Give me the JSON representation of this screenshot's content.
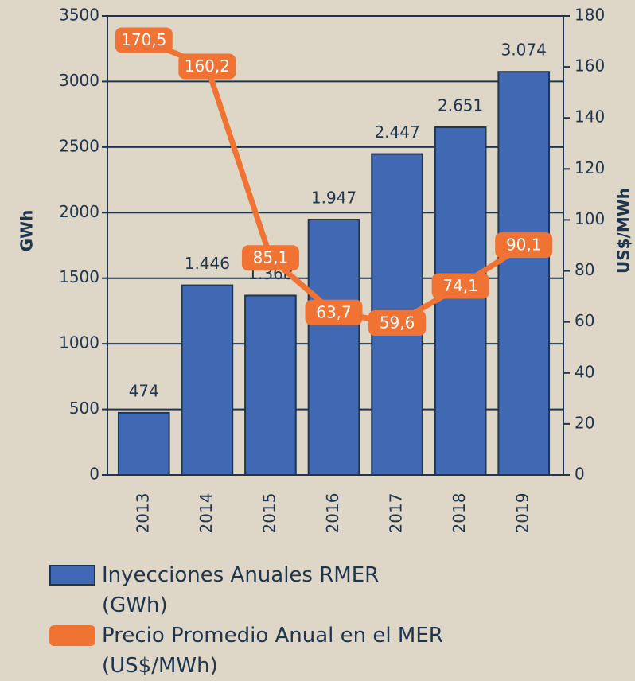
{
  "chart_data": {
    "type": "bar",
    "categories": [
      "2013",
      "2014",
      "2015",
      "2016",
      "2017",
      "2018",
      "2019"
    ],
    "ylabel": "GWh",
    "y2label": "US$/MWh",
    "ylim": [
      0,
      3500
    ],
    "yticks": [
      0,
      500,
      1000,
      1500,
      2000,
      2500,
      3000,
      3500
    ],
    "y2lim": [
      0,
      180
    ],
    "y2ticks": [
      0,
      20,
      40,
      60,
      80,
      100,
      120,
      140,
      160,
      180
    ],
    "grid": true,
    "series": [
      {
        "name": "Inyecciones Anuales RMER (GWh)",
        "type": "bar",
        "color": "#4169b3",
        "values": [
          474,
          1446,
          1368,
          1947,
          2447,
          2651,
          3074
        ],
        "value_labels": [
          "474",
          "1.446",
          "1.368",
          "1.947",
          "2.447",
          "2.651",
          "3.074"
        ]
      },
      {
        "name": "Precio Promedio Anual en el MER (US$/MWh)",
        "type": "line",
        "axis": "y2",
        "color": "#f07334",
        "values": [
          170.5,
          160.2,
          85.1,
          63.7,
          59.6,
          74.1,
          90.1
        ],
        "value_labels": [
          "170,5",
          "160,2",
          "85,1",
          "63,7",
          "59,6",
          "74,1",
          "90,1"
        ]
      }
    ]
  }
}
